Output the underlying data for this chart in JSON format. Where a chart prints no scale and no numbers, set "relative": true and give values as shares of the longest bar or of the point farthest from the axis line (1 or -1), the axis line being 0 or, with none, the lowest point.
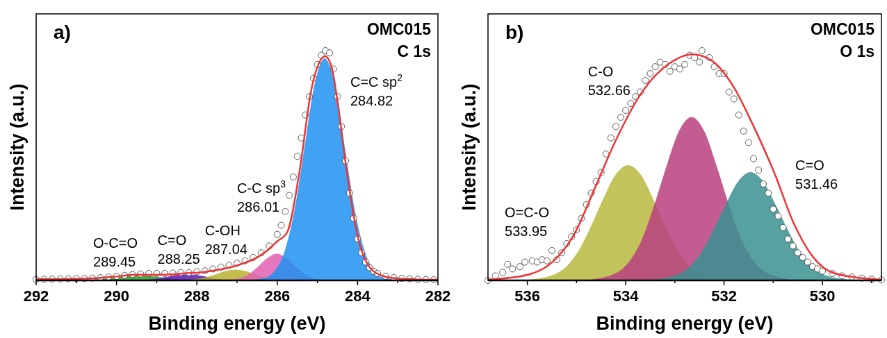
{
  "chart_data": [
    {
      "type": "area",
      "title": "OMC015",
      "subtitle": "C 1s",
      "xlabel": "Binding energy (eV)",
      "ylabel": "Intensity (a.u.)",
      "relative": true,
      "tick_labels": "x",
      "xlim": [
        292,
        282
      ],
      "xticks": [
        292,
        {
          "value": 291,
          "label": null
        },
        290,
        {
          "value": 289,
          "label": null
        },
        288,
        {
          "value": 287,
          "label": null
        },
        286,
        {
          "value": 285,
          "label": null
        },
        284,
        {
          "value": 283,
          "label": null
        },
        282
      ],
      "annotations": [
        "a)",
        "O-C=O\n289.45",
        "C=O\n288.25",
        "C-OH\n287.04",
        "C-C sp$^{3}$\n286.01",
        "C=C sp$^{2}$\n284.82"
      ],
      "series": [
        {
          "color": "#2a9a2a",
          "x": [
            290.95,
            290.45,
            290.2,
            289.95,
            289.7,
            289.45,
            289.2,
            288.95,
            288.7,
            288.45,
            287.95
          ],
          "values": [
            0,
            0.004,
            0.008,
            0.013,
            0.018,
            0.02,
            0.018,
            0.013,
            0.008,
            0.004,
            0
          ]
        },
        {
          "color": "#5a1ab0",
          "x": [
            289.75,
            289.25,
            289,
            288.75,
            288.5,
            288.25,
            288,
            287.75,
            287.5,
            287.25,
            286.75
          ],
          "values": [
            0,
            0.002,
            0.006,
            0.014,
            0.022,
            0.025,
            0.022,
            0.014,
            0.006,
            0.002,
            0
          ]
        },
        {
          "color": "#b8b030",
          "x": [
            288.54,
            288.04,
            287.79,
            287.54,
            287.29,
            287.04,
            286.79,
            286.54,
            286.29,
            286.04,
            285.54
          ],
          "values": [
            0,
            0.004,
            0.011,
            0.024,
            0.039,
            0.045,
            0.039,
            0.024,
            0.011,
            0.004,
            0
          ]
        },
        {
          "color": "#e060b0",
          "x": [
            287.51,
            287.01,
            286.76,
            286.51,
            286.26,
            286.01,
            285.76,
            285.51,
            285.26,
            285.01,
            284.51
          ],
          "values": [
            0,
            0.005,
            0.02,
            0.053,
            0.094,
            0.115,
            0.094,
            0.053,
            0.02,
            0.005,
            0
          ]
        },
        {
          "color": "#2090f0",
          "x": [
            286.82,
            286.32,
            286.07,
            285.82,
            285.57,
            285.32,
            285.07,
            284.82,
            284.57,
            284.32,
            284.07,
            283.82,
            283.57,
            283.32,
            282.82
          ],
          "values": [
            0,
            0.009,
            0.038,
            0.121,
            0.299,
            0.573,
            0.847,
            0.965,
            0.847,
            0.573,
            0.299,
            0.121,
            0.038,
            0.009,
            0
          ]
        },
        {
          "type": "scatter",
          "color": "#ffffff",
          "marker": "circle",
          "x": [
            292,
            291.8,
            291.6,
            291.4,
            291.2,
            291,
            290.8,
            290.6,
            290.4,
            290.2,
            290,
            289.8,
            289.6,
            289.4,
            289.2,
            289,
            288.8,
            288.6,
            288.4,
            288.2,
            288,
            287.8,
            287.6,
            287.4,
            287.2,
            287,
            286.8,
            286.6,
            286.4,
            286.2,
            286,
            285.9,
            285.8,
            285.7,
            285.6,
            285.5,
            285.4,
            285.3,
            285.2,
            285.1,
            285,
            284.9,
            284.8,
            284.7,
            284.6,
            284.5,
            284.4,
            284.3,
            284.2,
            284.1,
            284,
            283.9,
            283.8,
            283.7,
            283.6,
            283.5,
            283.3,
            283.1,
            282.9,
            282.7,
            282.5,
            282.3,
            282.1
          ],
          "values": [
            0.004,
            0.005,
            0.006,
            0.006,
            0.007,
            0.008,
            0.008,
            0.01,
            0.012,
            0.015,
            0.018,
            0.022,
            0.026,
            0.028,
            0.03,
            0.03,
            0.03,
            0.032,
            0.034,
            0.034,
            0.038,
            0.042,
            0.05,
            0.058,
            0.066,
            0.075,
            0.085,
            0.1,
            0.12,
            0.15,
            0.2,
            0.24,
            0.3,
            0.37,
            0.45,
            0.54,
            0.62,
            0.72,
            0.8,
            0.88,
            0.94,
            0.98,
            1.0,
            0.99,
            0.92,
            0.8,
            0.67,
            0.52,
            0.38,
            0.27,
            0.18,
            0.12,
            0.08,
            0.055,
            0.04,
            0.03,
            0.018,
            0.012,
            0.009,
            0.007,
            0.005,
            0.004,
            0.003
          ]
        },
        {
          "type": "line",
          "color": "#ee3333",
          "marker": "none",
          "line_style": "solid",
          "x": [
            292,
            291,
            290.5,
            290,
            289.5,
            289,
            288.5,
            288.25,
            288,
            287.5,
            287,
            286.5,
            286.25,
            286,
            285.75,
            285.44,
            285.15,
            284.95,
            284.81,
            284.65,
            284.5,
            284.29,
            284,
            283.71,
            283.35,
            283,
            282.5,
            282
          ],
          "values": [
            0.005,
            0.007,
            0.01,
            0.017,
            0.025,
            0.024,
            0.027,
            0.032,
            0.033,
            0.045,
            0.065,
            0.1,
            0.13,
            0.17,
            0.21,
            0.48,
            0.83,
            0.95,
            0.976,
            0.93,
            0.78,
            0.5,
            0.195,
            0.06,
            0.018,
            0.008,
            0.004,
            0.003
          ]
        }
      ]
    },
    {
      "type": "area",
      "title": "OMC015",
      "subtitle": "O 1s",
      "xlabel": "Binding energy (eV)",
      "ylabel": "Intensity (a.u.)",
      "relative": true,
      "tick_labels": "x",
      "xlim": [
        536.8,
        528.8
      ],
      "xticks": [
        536,
        {
          "value": 535,
          "label": null
        },
        534,
        {
          "value": 533,
          "label": null
        },
        532,
        {
          "value": 531,
          "label": null
        },
        530,
        {
          "value": 529,
          "label": null
        }
      ],
      "annotations": [
        "b)",
        "O=C-O\n533.95",
        "C-O\n532.66",
        "C=O\n531.46"
      ],
      "series": [
        {
          "color": "#b8b840",
          "x": [
            535.95,
            535.45,
            535.2,
            534.95,
            534.7,
            534.45,
            534.2,
            533.95,
            533.7,
            533.45,
            533.2,
            532.95,
            532.7,
            532.45,
            532.2,
            531.95
          ],
          "values": [
            0.0025,
            0.025,
            0.06,
            0.13,
            0.235,
            0.355,
            0.46,
            0.5,
            0.46,
            0.355,
            0.235,
            0.13,
            0.06,
            0.025,
            0.0025,
            0
          ]
        },
        {
          "color": "#b8407e",
          "x": [
            534.66,
            534.16,
            533.91,
            533.66,
            533.41,
            533.16,
            532.91,
            532.66,
            532.41,
            532.16,
            531.91,
            531.66,
            531.41,
            531.16,
            530.66
          ],
          "values": [
            0.004,
            0.035,
            0.085,
            0.18,
            0.33,
            0.5,
            0.65,
            0.71,
            0.65,
            0.5,
            0.33,
            0.18,
            0.085,
            0.035,
            0.004
          ]
        },
        {
          "color": "#3a9090",
          "x": [
            533.46,
            532.96,
            532.71,
            532.46,
            532.21,
            531.96,
            531.71,
            531.46,
            531.21,
            530.96,
            530.71,
            530.46,
            530.21,
            529.96,
            529.46
          ],
          "values": [
            0.002,
            0.023,
            0.056,
            0.12,
            0.22,
            0.33,
            0.43,
            0.47,
            0.43,
            0.33,
            0.22,
            0.12,
            0.056,
            0.023,
            0.002
          ]
        },
        {
          "type": "scatter",
          "color": "#ffffff",
          "marker": "circle",
          "x": [
            536.8,
            536.65,
            536.5,
            536.4,
            536.3,
            536.15,
            536.05,
            535.9,
            535.8,
            535.7,
            535.6,
            535.5,
            535.4,
            535.3,
            535.2,
            535.1,
            535,
            534.9,
            534.8,
            534.7,
            534.6,
            534.5,
            534.4,
            534.3,
            534.2,
            534.1,
            534,
            533.9,
            533.8,
            533.7,
            533.6,
            533.5,
            533.4,
            533.3,
            533.2,
            533.1,
            533,
            532.9,
            532.8,
            532.7,
            532.6,
            532.5,
            532.45,
            532.3,
            532.2,
            532.1,
            532,
            531.9,
            531.8,
            531.7,
            531.6,
            531.5,
            531.4,
            531.3,
            531.2,
            531.1,
            531,
            530.9,
            530.8,
            530.7,
            530.6,
            530.5,
            530.4,
            530.3,
            530.2,
            530.1,
            530,
            529.8,
            529.6,
            529.4,
            529.2,
            529,
            528.8
          ],
          "values": [
            0,
            0.02,
            0.035,
            0.07,
            0.05,
            0.06,
            0.08,
            0.085,
            0.08,
            0.09,
            0.085,
            0.13,
            0.09,
            0.12,
            0.16,
            0.19,
            0.22,
            0.27,
            0.33,
            0.38,
            0.43,
            0.47,
            0.55,
            0.62,
            0.67,
            0.71,
            0.74,
            0.77,
            0.8,
            0.82,
            0.87,
            0.9,
            0.93,
            0.95,
            0.94,
            0.91,
            0.93,
            0.92,
            0.94,
            0.98,
            0.97,
            0.95,
            1.0,
            0.97,
            0.93,
            0.9,
            0.9,
            0.82,
            0.79,
            0.72,
            0.65,
            0.6,
            0.53,
            0.48,
            0.42,
            0.38,
            0.31,
            0.28,
            0.23,
            0.18,
            0.15,
            0.12,
            0.1,
            0.08,
            0.06,
            0.05,
            0.04,
            0.03,
            0.02,
            0.015,
            0.01,
            0.005,
            0.002
          ]
        },
        {
          "type": "line",
          "color": "#ee3333",
          "marker": "none",
          "line_style": "solid",
          "x": [
            536.8,
            536,
            535.5,
            535.05,
            534.6,
            534.2,
            533.65,
            533.1,
            532.65,
            532.26,
            531.8,
            531.42,
            530.97,
            530.58,
            530.19,
            529.74,
            528.8
          ],
          "values": [
            0.003,
            0.024,
            0.078,
            0.2,
            0.415,
            0.61,
            0.825,
            0.946,
            0.984,
            0.958,
            0.84,
            0.68,
            0.464,
            0.247,
            0.102,
            0.03,
            0.003
          ]
        }
      ]
    }
  ]
}
